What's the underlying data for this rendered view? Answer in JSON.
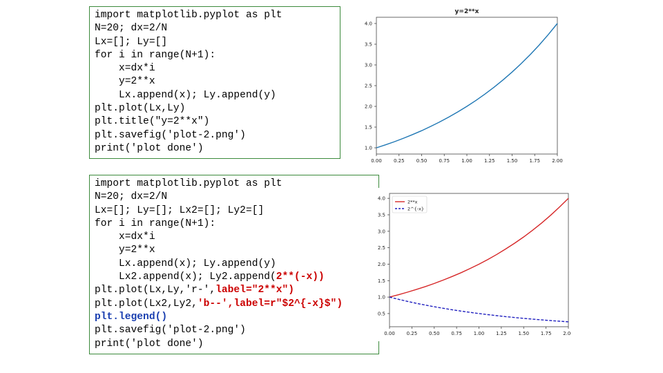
{
  "code_blocks": [
    {
      "lines": [
        [
          {
            "t": "import matplotlib.pyplot as plt"
          }
        ],
        [
          {
            "t": "N=20; dx=2/N"
          }
        ],
        [
          {
            "t": "Lx=[]; Ly=[]"
          }
        ],
        [
          {
            "t": "for i in range(N+1):"
          }
        ],
        [
          {
            "t": "    x=dx*i"
          }
        ],
        [
          {
            "t": "    y=2**x"
          }
        ],
        [
          {
            "t": "    Lx.append(x); Ly.append(y)"
          }
        ],
        [
          {
            "t": "plt.plot(Lx,Ly)"
          }
        ],
        [
          {
            "t": "plt.title(\"y=2**x\")"
          }
        ],
        [
          {
            "t": "plt.savefig('plot-2.png')"
          }
        ],
        [
          {
            "t": "print('plot done')"
          }
        ]
      ]
    },
    {
      "lines": [
        [
          {
            "t": "import matplotlib.pyplot as plt"
          }
        ],
        [
          {
            "t": "N=20; dx=2/N"
          }
        ],
        [
          {
            "t": "Lx=[]; Ly=[]; Lx2=[]; Ly2=[]"
          }
        ],
        [
          {
            "t": "for i in range(N+1):"
          }
        ],
        [
          {
            "t": "    x=dx*i"
          }
        ],
        [
          {
            "t": "    y=2**x"
          }
        ],
        [
          {
            "t": "    Lx.append(x); Ly.append(y)"
          }
        ],
        [
          {
            "t": "    Lx2.append(x); Ly2.append("
          },
          {
            "t": "2**(-x))",
            "c": "red"
          }
        ],
        [
          {
            "t": "plt.plot(Lx,Ly,'r-',"
          },
          {
            "t": "label=\"2**x\")",
            "c": "red"
          }
        ],
        [
          {
            "t": "plt.plot(Lx2,Ly2,"
          },
          {
            "t": "'b--',",
            "c": "red"
          },
          {
            "t": "label=r\"$2^{-x}$\")",
            "c": "red"
          }
        ],
        [
          {
            "t": "plt.legend()",
            "c": "blue"
          }
        ],
        [
          {
            "t": "plt.savefig('plot-2.png')"
          }
        ],
        [
          {
            "t": "print('plot done')"
          }
        ]
      ]
    }
  ],
  "chart_data": [
    {
      "type": "line",
      "title": "y=2**x",
      "xlabel": "",
      "ylabel": "",
      "xlim": [
        0,
        2
      ],
      "ylim": [
        0.85,
        4.15
      ],
      "x_ticks": [
        "0.00",
        "0.25",
        "0.50",
        "0.75",
        "1.00",
        "1.25",
        "1.50",
        "1.75",
        "2.00"
      ],
      "y_ticks": [
        "1.0",
        "1.5",
        "2.0",
        "2.5",
        "3.0",
        "3.5",
        "4.0"
      ],
      "x": [
        0,
        0.1,
        0.2,
        0.3,
        0.4,
        0.5,
        0.6,
        0.7,
        0.8,
        0.9,
        1.0,
        1.1,
        1.2,
        1.3,
        1.4,
        1.5,
        1.6,
        1.7,
        1.8,
        1.9,
        2.0
      ],
      "series": [
        {
          "values": [
            1.0,
            1.072,
            1.149,
            1.231,
            1.32,
            1.414,
            1.516,
            1.625,
            1.741,
            1.866,
            2.0,
            2.144,
            2.297,
            2.462,
            2.639,
            2.828,
            3.031,
            3.249,
            3.482,
            3.732,
            4.0
          ],
          "color": "#1f77b4",
          "style": "solid"
        }
      ],
      "grid": false
    },
    {
      "type": "line",
      "title": "",
      "xlabel": "",
      "ylabel": "",
      "xlim": [
        0,
        2
      ],
      "ylim": [
        0.1,
        4.15
      ],
      "x_ticks": [
        "0.00",
        "0.25",
        "0.50",
        "0.75",
        "1.00",
        "1.25",
        "1.50",
        "1.75",
        "2.00"
      ],
      "y_ticks": [
        "0.5",
        "1.0",
        "1.5",
        "2.0",
        "2.5",
        "3.0",
        "3.5",
        "4.0"
      ],
      "x": [
        0,
        0.1,
        0.2,
        0.3,
        0.4,
        0.5,
        0.6,
        0.7,
        0.8,
        0.9,
        1.0,
        1.1,
        1.2,
        1.3,
        1.4,
        1.5,
        1.6,
        1.7,
        1.8,
        1.9,
        2.0
      ],
      "series": [
        {
          "name": "2**x",
          "values": [
            1.0,
            1.072,
            1.149,
            1.231,
            1.32,
            1.414,
            1.516,
            1.625,
            1.741,
            1.866,
            2.0,
            2.144,
            2.297,
            2.462,
            2.639,
            2.828,
            3.031,
            3.249,
            3.482,
            3.732,
            4.0
          ],
          "color": "#d62728",
          "style": "solid"
        },
        {
          "name": "2^{-x}",
          "values": [
            1.0,
            0.933,
            0.871,
            0.812,
            0.758,
            0.707,
            0.66,
            0.616,
            0.574,
            0.536,
            0.5,
            0.467,
            0.435,
            0.406,
            0.379,
            0.354,
            0.33,
            0.308,
            0.287,
            0.268,
            0.25
          ],
          "color": "#1f1fbf",
          "style": "dashed"
        }
      ],
      "legend": "top-left",
      "grid": false
    }
  ]
}
